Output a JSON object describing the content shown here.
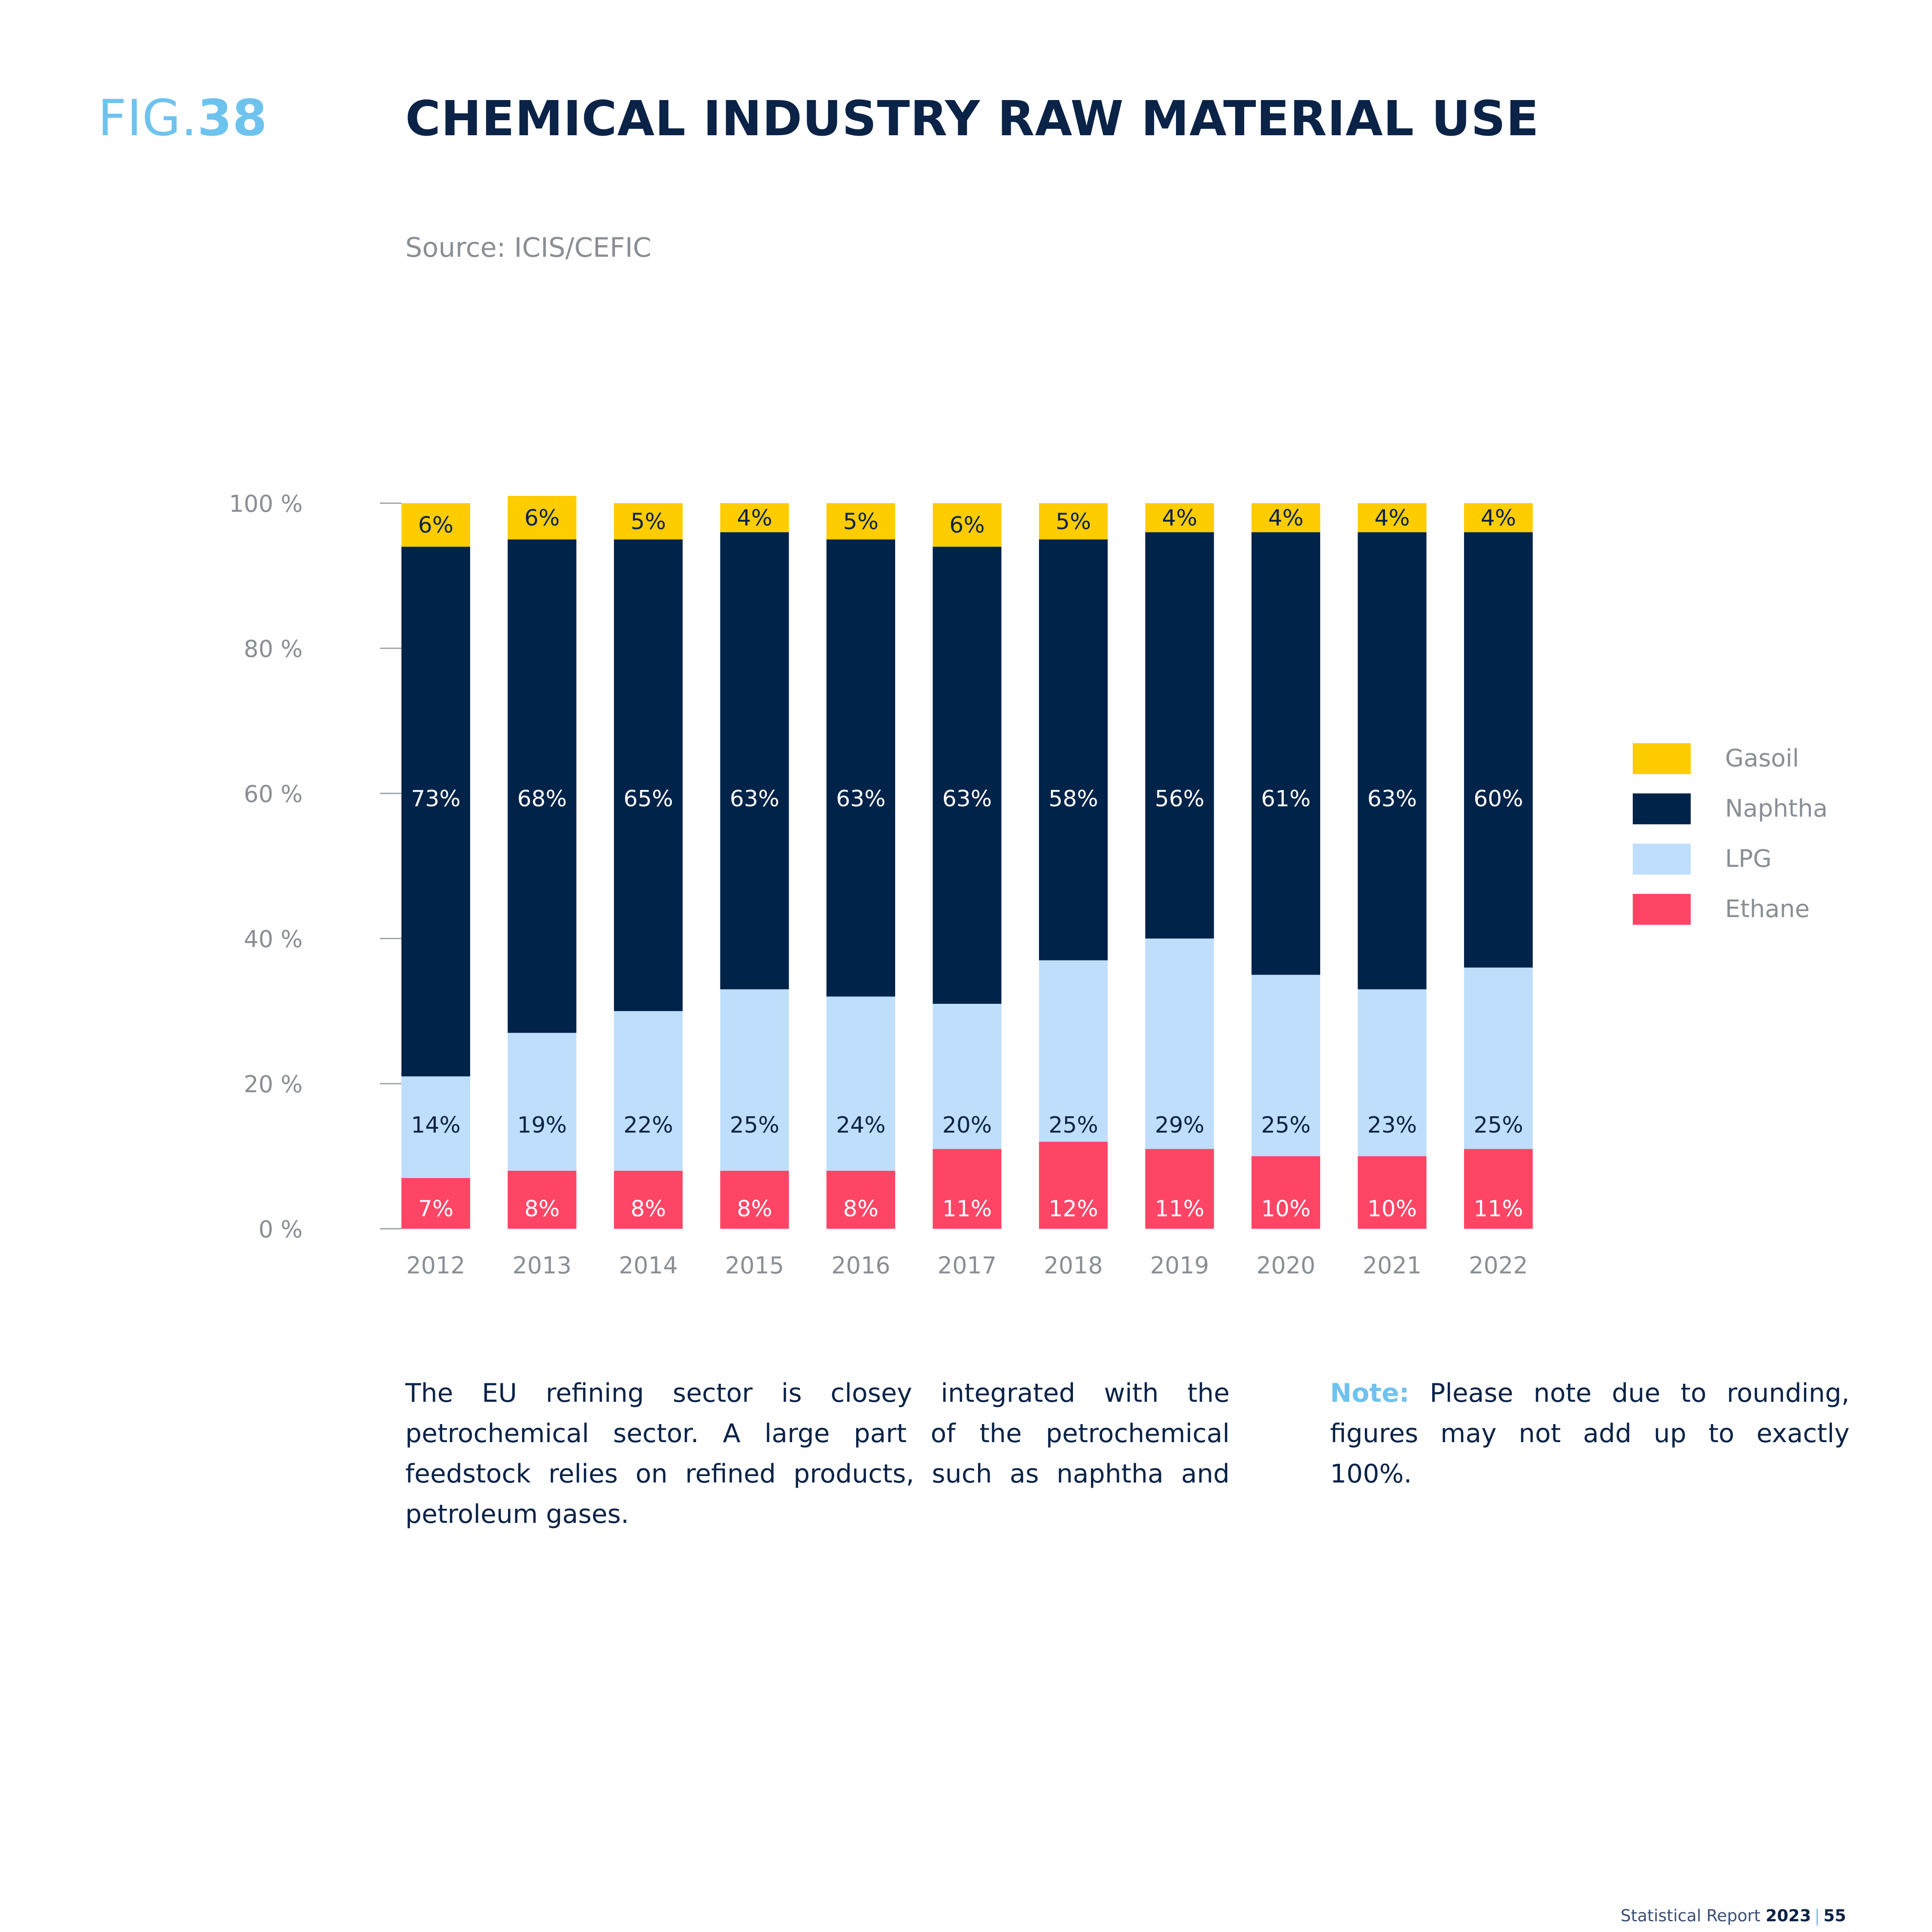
{
  "header": {
    "fig_prefix": "FIG.",
    "fig_number": "38",
    "title": "CHEMICAL INDUSTRY RAW MATERIAL USE",
    "source": "Source: ICIS/CEFIC"
  },
  "chart_data": {
    "type": "bar",
    "stacked": true,
    "categories": [
      "2012",
      "2013",
      "2014",
      "2015",
      "2016",
      "2017",
      "2018",
      "2019",
      "2020",
      "2021",
      "2022"
    ],
    "series": [
      {
        "name": "Ethane",
        "color": "#ff4566",
        "values": [
          7,
          8,
          8,
          8,
          8,
          11,
          12,
          11,
          10,
          10,
          11
        ]
      },
      {
        "name": "LPG",
        "color": "#bfdefc",
        "values": [
          14,
          19,
          22,
          25,
          24,
          20,
          25,
          29,
          25,
          23,
          25
        ]
      },
      {
        "name": "Naphtha",
        "color": "#00234a",
        "values": [
          73,
          68,
          65,
          63,
          63,
          63,
          58,
          56,
          61,
          63,
          60
        ]
      },
      {
        "name": "Gasoil",
        "color": "#ffcc00",
        "values": [
          6,
          6,
          5,
          4,
          5,
          6,
          5,
          4,
          4,
          4,
          4
        ]
      }
    ],
    "y_ticks": [
      "0 %",
      "20 %",
      "40 %",
      "60 %",
      "80 %",
      "100 %"
    ],
    "ylim": [
      0,
      100
    ],
    "legend": {
      "position": "right",
      "order": [
        "Gasoil",
        "Naphtha",
        "LPG",
        "Ethane"
      ]
    },
    "grid": false
  },
  "text": {
    "body": "The EU refining sector is closey integrated with the petrochemical sector. A large part of the petrochemical feedstock relies on refined products, such as naphtha and petroleum gases.",
    "note_label": "Note:",
    "note_body": "Please note due to rounding, figures may not add up to exactly 100%."
  },
  "footer": {
    "report": "Statistical Report",
    "year": "2023",
    "separator": "|",
    "page": "55"
  }
}
